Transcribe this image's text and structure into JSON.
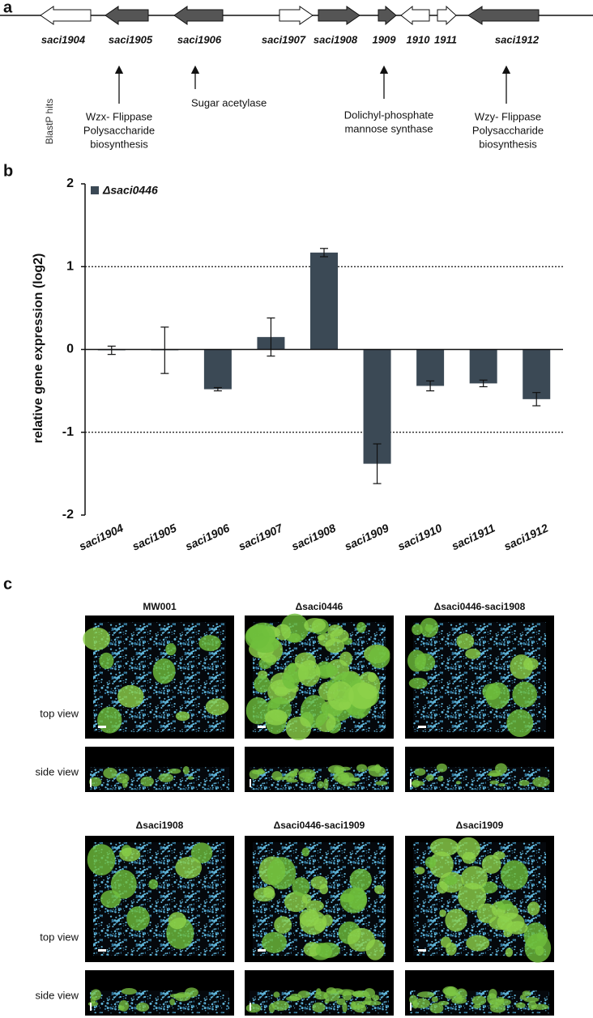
{
  "panel_a": {
    "label": "a",
    "genes": [
      "saci1904",
      "saci1905",
      "saci1906",
      "saci1907",
      "saci1908",
      "1909",
      "1910",
      "1911",
      "saci1912"
    ],
    "blastp_label": "BlastP hits",
    "hits": [
      [
        "Wzx- Flippase",
        "Polysaccharide",
        "biosynthesis"
      ],
      [
        "Sugar acetylase"
      ],
      [
        "Dolichyl-phosphate",
        "mannose synthase"
      ],
      [
        "Wzy- Flippase",
        "Polysaccharide",
        "biosynthesis"
      ]
    ]
  },
  "chart_data": {
    "type": "bar",
    "panel_label": "b",
    "y_label": "relative gene expression (log2)",
    "categories": [
      "saci1904",
      "saci1905",
      "saci1906",
      "saci1907",
      "saci1908",
      "saci1909",
      "saci1910",
      "saci1911",
      "saci1912"
    ],
    "series": [
      {
        "name": "Δsaci0446",
        "color": "#3b4955",
        "values": [
          -0.01,
          -0.01,
          -0.48,
          0.15,
          1.17,
          -1.38,
          -0.44,
          -0.41,
          -0.6
        ],
        "errors": [
          0.05,
          0.28,
          0.02,
          0.23,
          0.05,
          0.24,
          0.06,
          0.04,
          0.08
        ]
      }
    ],
    "ylim": [
      -2,
      2
    ],
    "yticks": [
      -2,
      -1,
      0,
      1,
      2
    ],
    "hlines": [
      -1,
      1
    ]
  },
  "panel_c": {
    "label": "c",
    "samples": [
      "MW001",
      "Δsaci0446",
      "Δsaci0446-saci1908",
      "Δsaci1908",
      "Δsaci0446-saci1909",
      "Δsaci1909"
    ],
    "view_labels": [
      "top view",
      "side view"
    ]
  }
}
